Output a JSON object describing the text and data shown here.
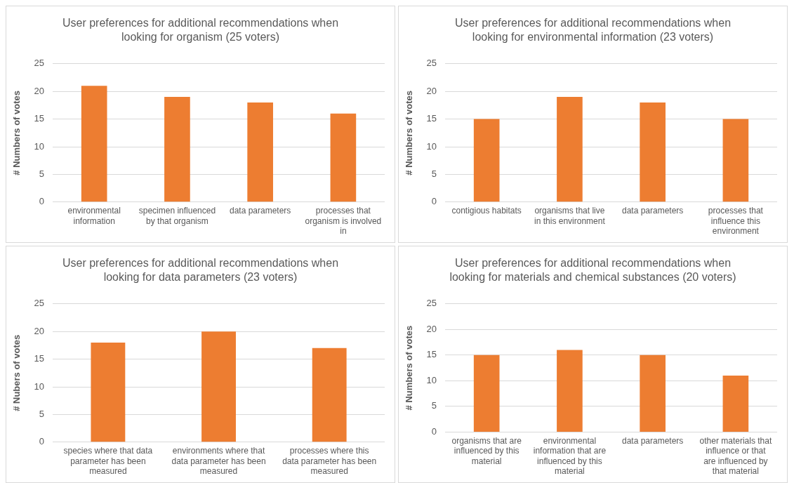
{
  "chart_data": [
    {
      "type": "bar",
      "title": "User preferences for additional recommendations when looking for organism (25 voters)",
      "ylabel": "# Numbers of votes",
      "categories": [
        "environmental information",
        "specimen influenced by that organism",
        "data parameters",
        "processes that organism is involved in"
      ],
      "values": [
        21,
        19,
        18,
        16
      ],
      "color": "#ed7d31",
      "ylim": [
        0,
        25
      ],
      "yticks": [
        0,
        5,
        10,
        15,
        20,
        25
      ],
      "grid": "y",
      "legend": false
    },
    {
      "type": "bar",
      "title": "User preferences for additional recommendations when looking for environmental information (23 voters)",
      "ylabel": "# Numbers of votes",
      "categories": [
        "contigious habitats",
        "organisms that live in this environment",
        "data parameters",
        "processes that influence this environment"
      ],
      "values": [
        15,
        19,
        18,
        15
      ],
      "color": "#ed7d31",
      "ylim": [
        0,
        25
      ],
      "yticks": [
        0,
        5,
        10,
        15,
        20,
        25
      ],
      "grid": "y",
      "legend": false
    },
    {
      "type": "bar",
      "title": "User preferences for additional recommendations when looking for data parameters (23 voters)",
      "ylabel": "# Nubers of votes",
      "categories": [
        "species where that data parameter has been measured",
        "environments where that data parameter has been measured",
        "processes where this data parameter has been measured"
      ],
      "values": [
        18,
        20,
        17
      ],
      "color": "#ed7d31",
      "ylim": [
        0,
        25
      ],
      "yticks": [
        0,
        5,
        10,
        15,
        20,
        25
      ],
      "grid": "y",
      "legend": false
    },
    {
      "type": "bar",
      "title": "User preferences for additional recommendations when looking for materials and chemical substances (20 voters)",
      "ylabel": "# Numbers of votes",
      "categories": [
        "organisms that are influenced by this material",
        "environmental information that are influenced by this material",
        "data parameters",
        "other materials that influence or that are influenced by that material"
      ],
      "values": [
        15,
        16,
        15,
        11
      ],
      "color": "#ed7d31",
      "ylim": [
        0,
        25
      ],
      "yticks": [
        0,
        5,
        10,
        15,
        20,
        25
      ],
      "grid": "y",
      "legend": false
    }
  ]
}
